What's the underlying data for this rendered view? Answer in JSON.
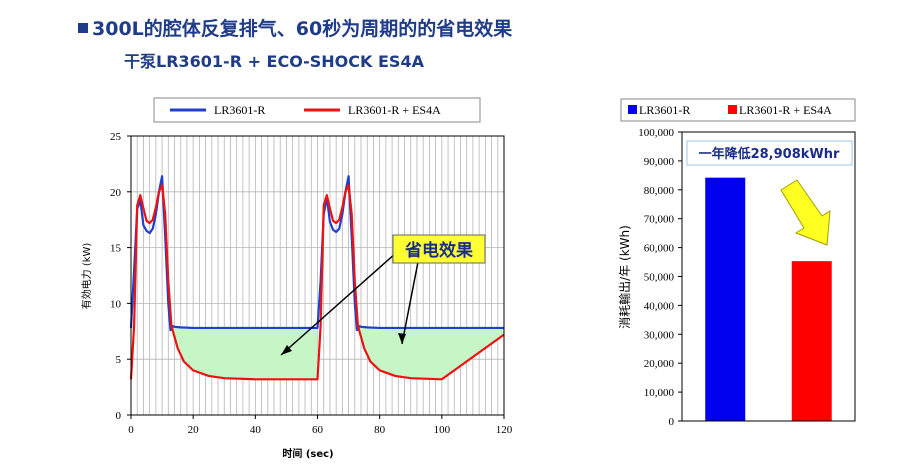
{
  "header": {
    "title": "300L的腔体反复排气、60秒为周期的的省电效果",
    "subtitle": "干泵LR3601-R + ECO-SHOCK ES4A"
  },
  "colors": {
    "series1": "#1f3fcf",
    "series2": "#ee1111",
    "saving_fill": "#c6f5c6",
    "callout_fill": "#ffff33"
  },
  "chart_data": [
    {
      "type": "line",
      "title": "",
      "xlabel": "时间 (sec)",
      "ylabel": "有効电力 (kW)",
      "xlim": [
        0,
        120
      ],
      "ylim": [
        0,
        25
      ],
      "xticks": [
        0,
        20,
        40,
        60,
        80,
        100,
        120
      ],
      "yticks": [
        0,
        5,
        10,
        15,
        20,
        25
      ],
      "grid": true,
      "legend": "top",
      "annotation": "省电效果",
      "series": [
        {
          "name": "LR3601-R",
          "x": [
            0,
            1,
            2,
            3,
            4,
            5,
            6,
            7,
            8,
            9,
            10,
            11,
            12,
            12.7,
            13,
            14,
            16,
            20,
            40,
            60,
            61,
            62,
            63,
            64,
            65,
            66,
            67,
            68,
            69,
            70,
            71,
            72,
            72.7,
            73,
            74,
            76,
            80,
            100,
            120
          ],
          "y": [
            7.8,
            13,
            18.5,
            19.2,
            17,
            16.5,
            16.3,
            16.7,
            18,
            20,
            21.4,
            16,
            10,
            7.6,
            8,
            7.9,
            7.85,
            7.8,
            7.8,
            7.8,
            12,
            18,
            19.5,
            17.3,
            16.6,
            16.4,
            16.7,
            18,
            20,
            21.4,
            16,
            10,
            7.6,
            8,
            7.9,
            7.85,
            7.8,
            7.8,
            7.8
          ]
        },
        {
          "name": "LR3601-R + ES4A",
          "x": [
            0,
            1,
            2,
            3,
            4,
            5,
            6,
            7,
            8,
            9,
            10,
            11,
            12,
            13,
            15,
            17,
            20,
            25,
            30,
            40,
            60,
            61,
            62,
            63,
            64,
            65,
            66,
            67,
            68,
            69,
            70,
            71,
            72,
            73,
            75,
            77,
            80,
            85,
            90,
            100,
            120
          ],
          "y": [
            3.2,
            8,
            18.8,
            19.7,
            18.5,
            17.4,
            17.2,
            17.5,
            18.6,
            20,
            20.6,
            18,
            12,
            8,
            6,
            4.8,
            4,
            3.5,
            3.3,
            3.2,
            3.2,
            8,
            18.8,
            19.7,
            18.5,
            17.4,
            17.2,
            17.5,
            18.6,
            20,
            20.6,
            18,
            12,
            8,
            6,
            4.8,
            4,
            3.5,
            3.3,
            3.2,
            7.2
          ]
        }
      ]
    },
    {
      "type": "bar",
      "title": "",
      "xlabel": "",
      "ylabel": "消耗輸出/年 (kWh)",
      "ylim": [
        0,
        100000
      ],
      "yticks": [
        0,
        10000,
        20000,
        30000,
        40000,
        50000,
        60000,
        70000,
        80000,
        90000,
        100000
      ],
      "ytick_labels": [
        "0",
        "10,000",
        "20,000",
        "30,000",
        "40,000",
        "50,000",
        "60,000",
        "70,000",
        "80,000",
        "90,000",
        "100,000"
      ],
      "grid": false,
      "legend": "top",
      "annotation": "一年降低28,908kWhr",
      "series": [
        {
          "name": "LR3601-R",
          "values": [
            84200
          ],
          "color": "#0000ee"
        },
        {
          "name": "LR3601-R + ES4A",
          "values": [
            55300
          ],
          "color": "#ff0000"
        }
      ]
    }
  ]
}
